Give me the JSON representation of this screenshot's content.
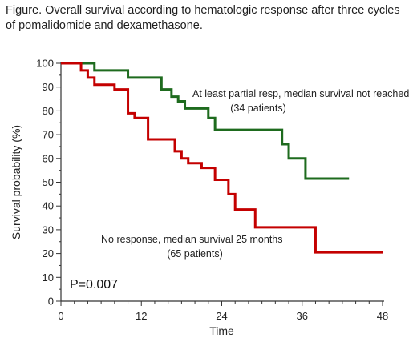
{
  "caption": "Figure. Overall survival according to hematologic response after three cycles of pomalidomide and dexamethasone.",
  "chart_data": {
    "type": "line",
    "step": true,
    "xlabel": "Time",
    "ylabel": "Survival probability (%)",
    "xlim": [
      0,
      48
    ],
    "ylim": [
      0,
      100
    ],
    "xticks": [
      0,
      12,
      24,
      36,
      48
    ],
    "yticks": [
      0,
      10,
      20,
      30,
      40,
      50,
      60,
      70,
      80,
      90,
      100
    ],
    "grid": false,
    "series": [
      {
        "name": "At least partial resp, median survival not reached",
        "color": "#1e6b1e",
        "x": [
          0,
          5,
          10,
          15,
          16.5,
          17.5,
          18.5,
          22,
          23,
          33,
          34,
          36.5,
          43
        ],
        "y": [
          100,
          97,
          94,
          89,
          86,
          84,
          81,
          77,
          72,
          66,
          60,
          51.5,
          51.5
        ]
      },
      {
        "name": "No response, median survival 25 months",
        "color": "#c40000",
        "x": [
          0,
          3,
          4,
          5,
          8,
          10,
          11,
          13,
          17,
          18,
          19,
          21,
          23,
          25,
          26,
          29,
          38,
          48
        ],
        "y": [
          100,
          97,
          94,
          91,
          89,
          79,
          77,
          68,
          63,
          60,
          58,
          56,
          51,
          45,
          38.5,
          31,
          20.5,
          20.5
        ]
      }
    ],
    "annotations": [
      {
        "id": "green-label-1",
        "text": "At least partial resp, median survival  not reached"
      },
      {
        "id": "green-label-2",
        "text": "(34 patients)"
      },
      {
        "id": "red-label-1",
        "text": "No response, median survival 25 months"
      },
      {
        "id": "red-label-2",
        "text": "(65 patients)"
      },
      {
        "id": "p-value",
        "text": "P=0.007"
      }
    ]
  }
}
